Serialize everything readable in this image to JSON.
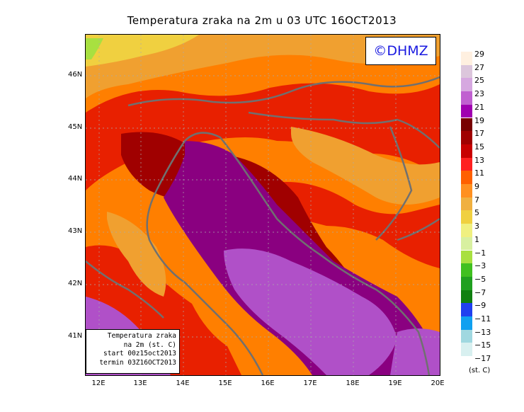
{
  "title": "Temperatura zraka na 2m u 03 UTC 16OCT2013",
  "logo": "©DHMZ",
  "info": {
    "line1": "Temperatura zraka",
    "line2": "na 2m (st. C)",
    "line3": "start 00z15oct2013",
    "line4": "termin 03Z16OCT2013"
  },
  "y_labels": [
    "46N",
    "45N",
    "44N",
    "43N",
    "42N",
    "41N"
  ],
  "x_labels": [
    "12E",
    "13E",
    "14E",
    "15E",
    "16E",
    "17E",
    "18E",
    "19E",
    "20E"
  ],
  "legend": {
    "labels": [
      "29",
      "27",
      "25",
      "23",
      "21",
      "19",
      "17",
      "15",
      "13",
      "11",
      "9",
      "7",
      "5",
      "3",
      "1",
      "−1",
      "−3",
      "−5",
      "−7",
      "−9",
      "−11",
      "−13",
      "−15",
      "−17"
    ],
    "colors": [
      "#fff0e0",
      "#dcc6dc",
      "#d6a8e0",
      "#c060d0",
      "#a000b0",
      "#780000",
      "#a00000",
      "#c80000",
      "#ff2020",
      "#ff6000",
      "#ff9020",
      "#f0b040",
      "#f0d040",
      "#f0f080",
      "#d8f0a0",
      "#a8e040",
      "#40c020",
      "#20a020",
      "#108010",
      "#2040f0",
      "#10a0f0",
      "#a0d8e0",
      "#d8f0f0",
      "#ffffff"
    ],
    "unit": "(st. C)"
  },
  "colors": {
    "land_base": "#ff7f00",
    "warm_land": "#e82000",
    "sea_coastal": "#8a0080",
    "sea_open": "#b050c8",
    "coast_lines": "#707070",
    "logo_text": "#1a1ae0"
  }
}
